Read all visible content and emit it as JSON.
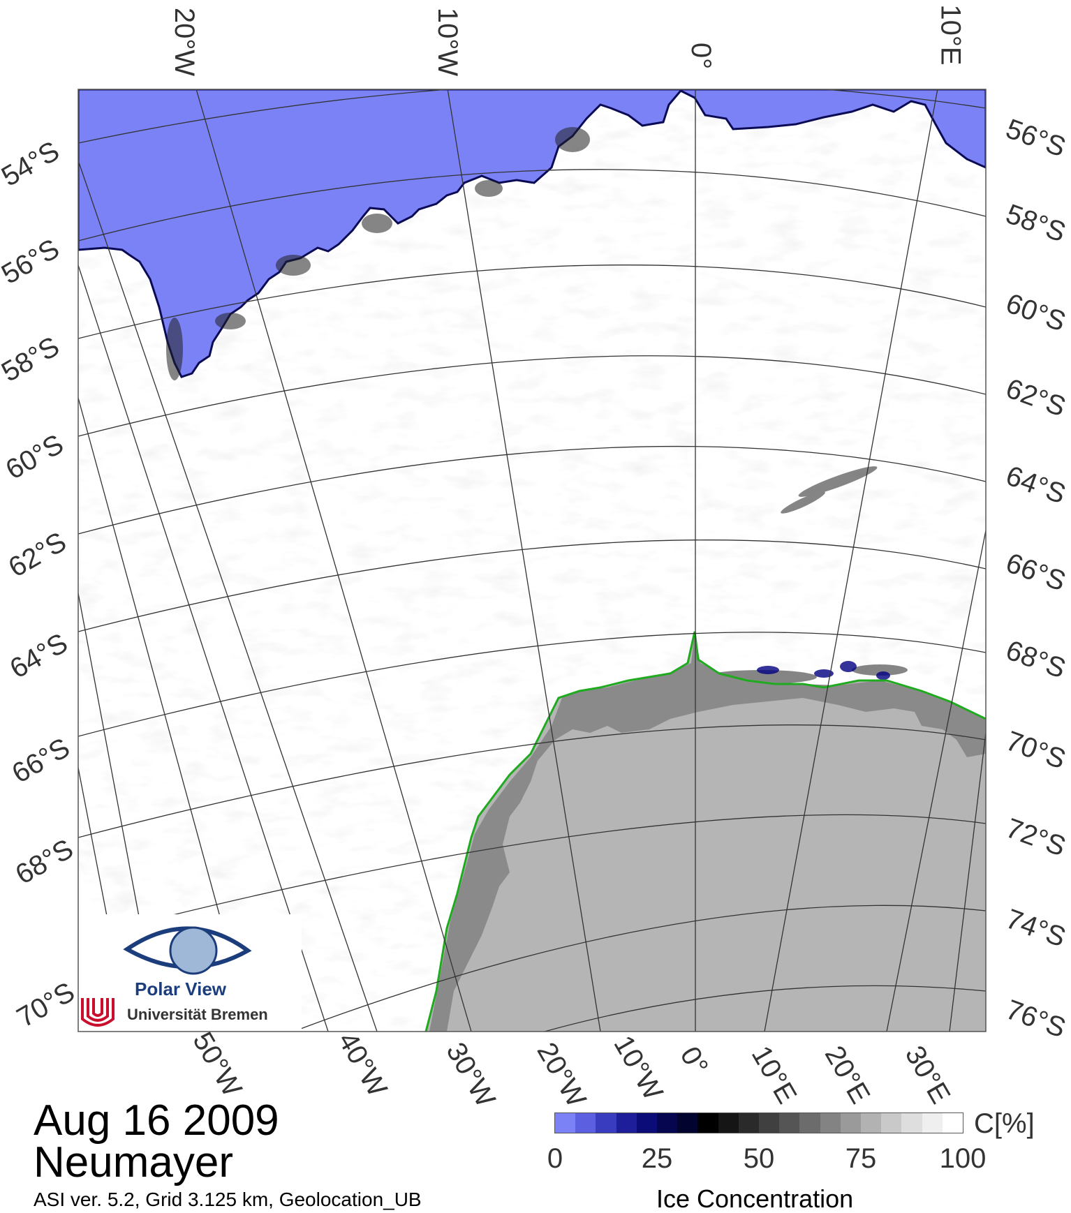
{
  "date": "Aug 16 2009",
  "station": "Neumayer",
  "footnote": "ASI ver. 5.2,  Grid 3.125 km, Geolocation_UB",
  "colors": {
    "open_water": "#7b82f6",
    "ice_high": "#ffffff",
    "land": "#b5b5b5",
    "shelf_ice": "#8a8a8a",
    "coastline": "#1faa1f",
    "grid": "#333333"
  },
  "top_labels": [
    "20°W",
    "10°W",
    "0°",
    "10°E"
  ],
  "bottom_labels": [
    "50°W",
    "40°W",
    "30°W",
    "20°W",
    "10°W",
    "0°",
    "10°E",
    "20°E",
    "30°E"
  ],
  "left_labels": [
    "54°S",
    "56°S",
    "58°S",
    "60°S",
    "62°S",
    "64°S",
    "66°S",
    "68°S",
    "70°S"
  ],
  "right_labels": [
    "56°S",
    "58°S",
    "60°S",
    "62°S",
    "64°S",
    "66°S",
    "68°S",
    "70°S",
    "72°S",
    "74°S",
    "76°S"
  ],
  "colorbar": {
    "ticks": [
      "0",
      "25",
      "50",
      "75",
      "100"
    ],
    "unit": "C[%]",
    "title": "Ice Concentration"
  },
  "logo": {
    "title": "Polar View",
    "institution": "Universität Bremen"
  }
}
